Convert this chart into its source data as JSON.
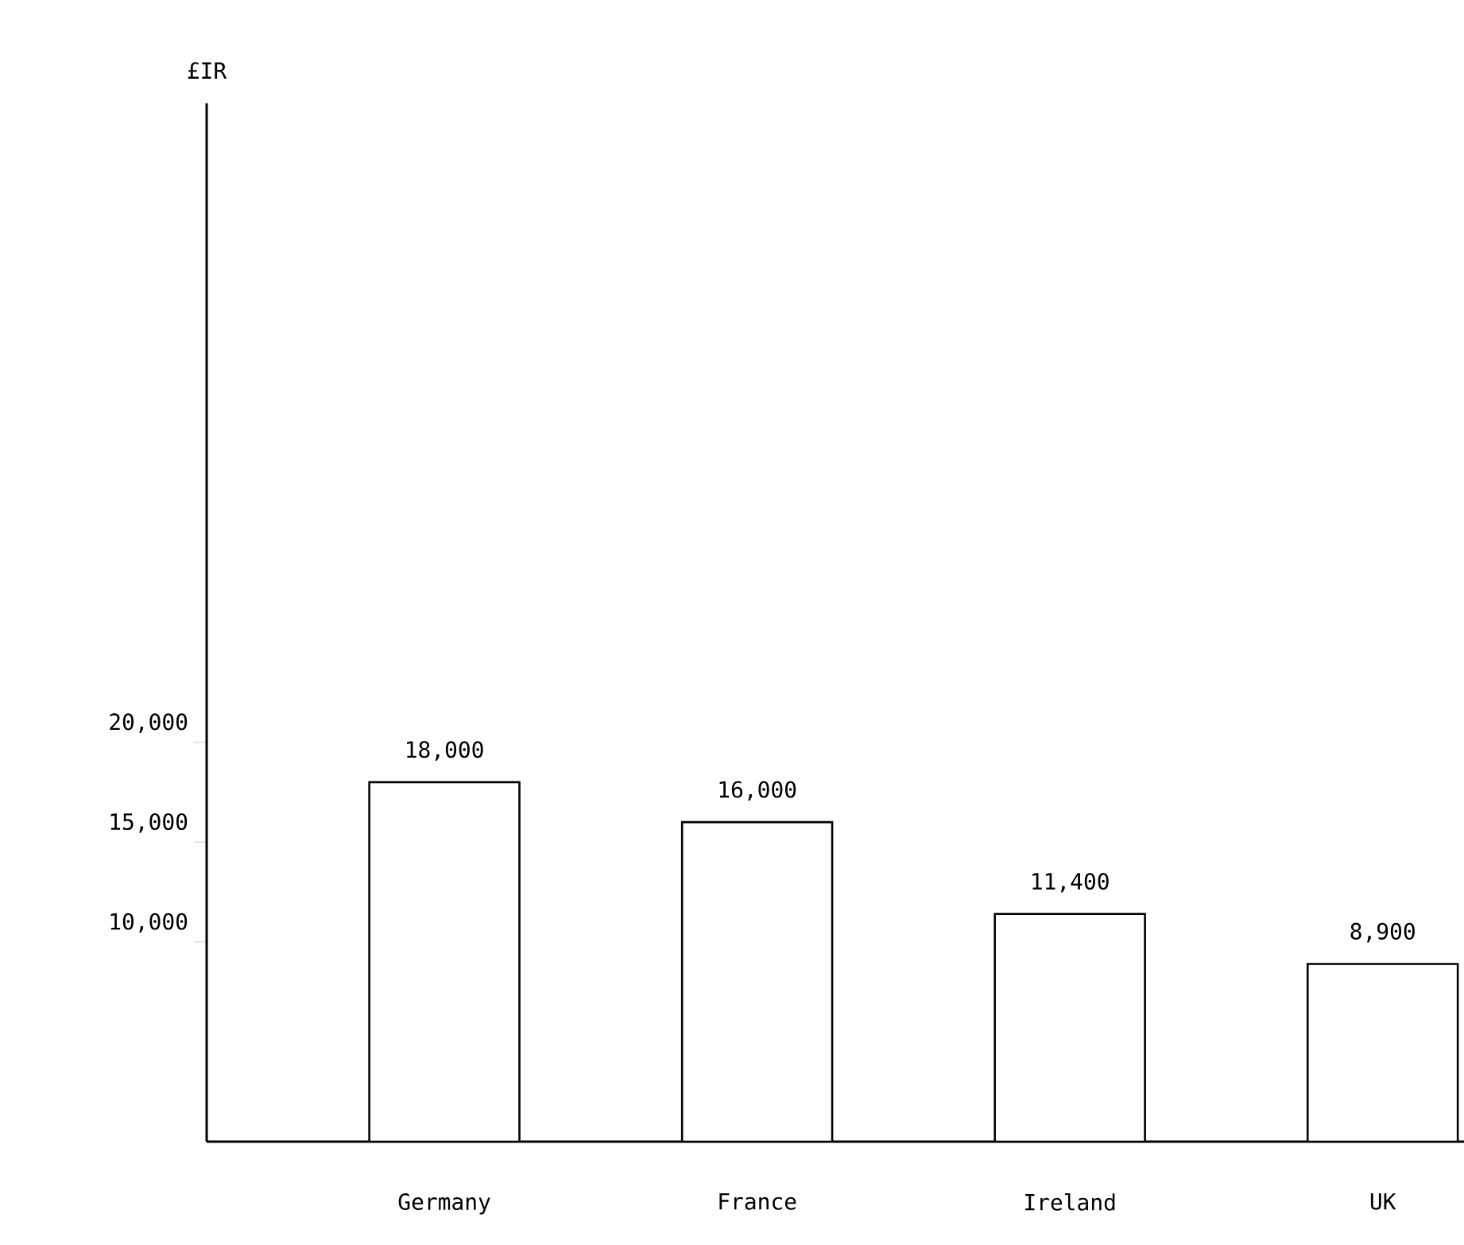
{
  "chart_data": {
    "type": "bar",
    "ylabel": "£IR",
    "categories": [
      "Germany",
      "France",
      "Ireland",
      "UK"
    ],
    "values": [
      18000,
      16000,
      11400,
      8900
    ],
    "value_labels": [
      "18,000",
      "16,000",
      "11,400",
      "8,900"
    ],
    "color": "#ffffff",
    "ylim": [
      0,
      52000
    ],
    "yticks": [
      {
        "value": 10000,
        "label": "10,000"
      },
      {
        "value": 15000,
        "label": "15,000"
      },
      {
        "value": 20000,
        "label": "20,000"
      }
    ],
    "grid": false
  }
}
